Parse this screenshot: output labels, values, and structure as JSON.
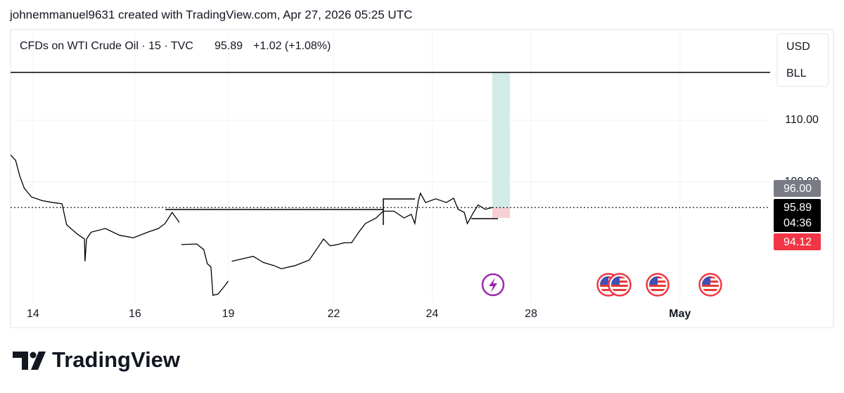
{
  "header": "johnemmanuel9631 created with TradingView.com, Apr 27, 2026 05:25 UTC",
  "legend": {
    "symbol": "CFDs on WTI Crude Oil · 15 · TVC",
    "price": "95.89",
    "change": "+1.02 (+1.08%)"
  },
  "scale_buttons": [
    "USD",
    "BLL"
  ],
  "brand": "TradingView",
  "chart_data": {
    "type": "line",
    "color": "#000000",
    "x": [
      -0.44,
      -0.34,
      -0.26,
      -0.17,
      -0.03,
      0.18,
      0.39,
      0.57,
      0.66,
      0.87,
      1.01,
      1.02,
      1.05,
      1.14,
      1.42,
      1.7,
      1.97,
      2.25,
      2.46,
      2.59,
      2.73,
      2.87,
      null,
      2.91,
      3.21,
      3.35,
      3.42,
      3.49,
      3.53,
      3.63,
      3.74,
      3.83,
      null,
      3.9,
      4.11,
      4.32,
      4.52,
      4.73,
      4.87,
      5.14,
      5.42,
      5.56,
      5.7,
      5.83,
      5.97,
      6.11,
      6.25,
      6.39,
      6.52,
      6.73,
      6.87,
      7.08,
      7.28,
      7.42,
      7.49,
      7.56,
      7.6,
      7.7,
      7.9,
      8.11,
      8.25,
      8.34,
      8.46,
      8.52,
      8.62,
      8.73,
      8.87,
      9.01
    ],
    "values": [
      104.4,
      103.5,
      101.0,
      99.0,
      97.6,
      97.0,
      96.7,
      96.5,
      93.1,
      91.6,
      90.8,
      87.2,
      90.8,
      91.9,
      92.5,
      91.4,
      91.0,
      91.9,
      92.5,
      93.3,
      95.1,
      93.5,
      null,
      89.9,
      90.0,
      89.1,
      86.8,
      86.3,
      81.7,
      81.9,
      83.0,
      84.0,
      null,
      87.2,
      87.6,
      88.0,
      87.0,
      86.5,
      86.0,
      86.5,
      87.4,
      89.1,
      90.8,
      89.7,
      89.9,
      90.2,
      90.2,
      91.9,
      93.3,
      94.2,
      95.3,
      95.3,
      94.2,
      94.8,
      93.3,
      97.0,
      98.2,
      96.7,
      97.3,
      96.7,
      97.4,
      95.6,
      95.1,
      93.3,
      94.8,
      96.3,
      95.6,
      95.9
    ],
    "xlim": [
      -0.44,
      14.46
    ],
    "xticks": [
      {
        "value": 0,
        "label": "14"
      },
      {
        "value": 2,
        "label": "16"
      },
      {
        "value": 3.83,
        "label": "19"
      },
      {
        "value": 5.9,
        "label": "22"
      },
      {
        "value": 7.83,
        "label": "24"
      },
      {
        "value": 9.77,
        "label": "28"
      },
      {
        "value": 12.69,
        "label": "May"
      }
    ],
    "ylim": [
      80.57,
      124.66
    ],
    "yticks": [
      {
        "value": 100,
        "label": "100.00"
      },
      {
        "value": 110,
        "label": "110.00"
      }
    ],
    "grid": true,
    "price_labels": [
      {
        "value": 96,
        "label": "96.00",
        "color": "#787b86"
      },
      {
        "value": 95.89,
        "label": "95.89",
        "color": "#000000"
      },
      {
        "value": 94.12,
        "label": "94.12",
        "color": "#f23645"
      }
    ],
    "countdown": "04:36"
  }
}
